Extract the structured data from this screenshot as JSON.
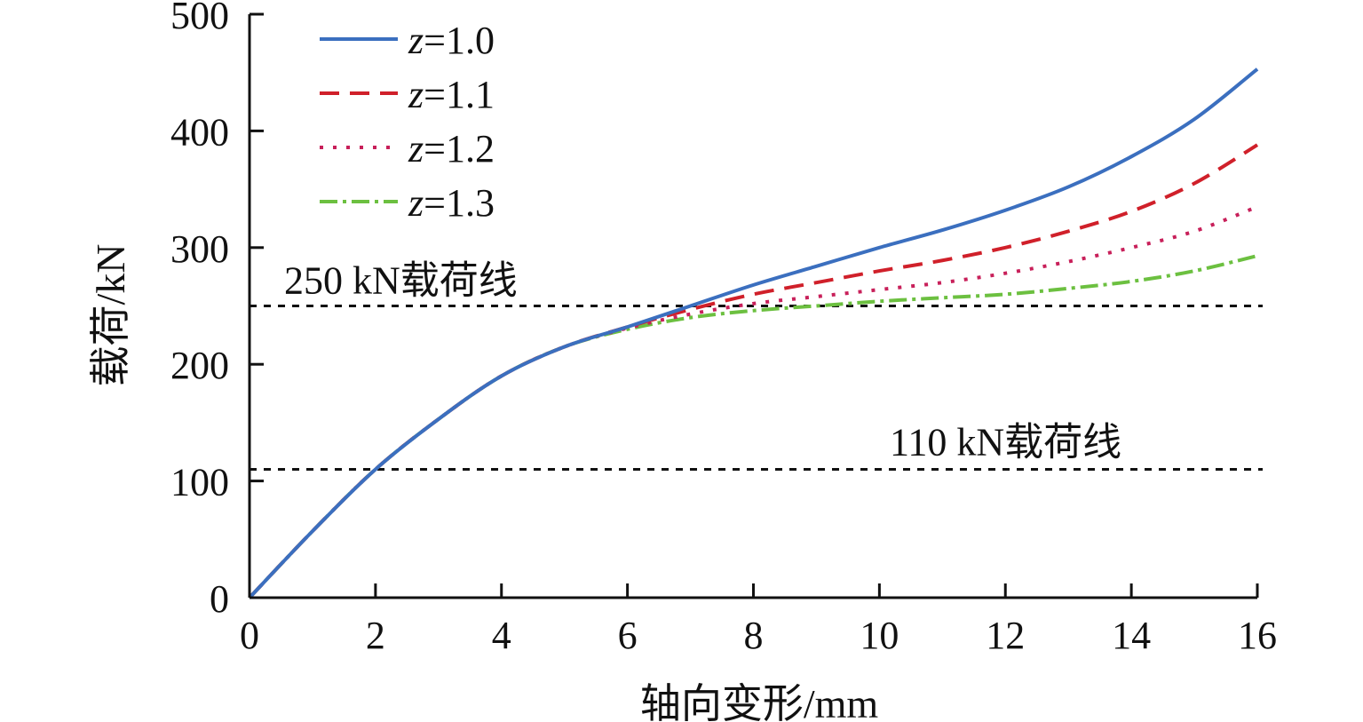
{
  "chart_data": {
    "type": "line",
    "title": "",
    "xlabel": "轴向变形/mm",
    "ylabel": "载荷/kN",
    "xlim": [
      0,
      16
    ],
    "ylim": [
      0,
      500
    ],
    "xticks": [
      "0",
      "2",
      "4",
      "6",
      "8",
      "10",
      "12",
      "14",
      "16"
    ],
    "yticks": [
      "0",
      "100",
      "200",
      "300",
      "400",
      "500"
    ],
    "grid": false,
    "legend_placement": "top-left",
    "x": [
      0,
      1,
      2,
      3,
      4,
      5,
      6,
      7,
      8,
      9,
      10,
      11,
      12,
      13,
      14,
      15,
      16
    ],
    "series": [
      {
        "name": "z=1.0",
        "prefix": "z",
        "suffix": "=1.0",
        "color": "#3b6fbf",
        "dash": "",
        "values": [
          0,
          57,
          110,
          153,
          190,
          215,
          232,
          250,
          268,
          284,
          300,
          315,
          332,
          352,
          378,
          410,
          453
        ]
      },
      {
        "name": "z=1.1",
        "prefix": "z",
        "suffix": "=1.1",
        "color": "#d0202a",
        "dash": "22 12",
        "values": [
          0,
          57,
          110,
          153,
          190,
          215,
          232,
          247,
          260,
          270,
          280,
          289,
          300,
          314,
          331,
          355,
          388
        ]
      },
      {
        "name": "z=1.2",
        "prefix": "z",
        "suffix": "=1.2",
        "color": "#c8205a",
        "dash": "4 11",
        "values": [
          0,
          57,
          110,
          153,
          190,
          215,
          231,
          243,
          252,
          258,
          264,
          270,
          278,
          288,
          300,
          314,
          335
        ]
      },
      {
        "name": "z=1.3",
        "prefix": "z",
        "suffix": "=1.3",
        "color": "#6cc040",
        "dash": "20 6 4 6",
        "values": [
          0,
          57,
          110,
          153,
          190,
          215,
          230,
          240,
          246,
          250,
          254,
          257,
          260,
          265,
          271,
          280,
          293
        ]
      }
    ],
    "reference_lines": [
      {
        "y": 250,
        "label": "250 kN载荷线"
      },
      {
        "y": 110,
        "label": "110 kN载荷线"
      }
    ]
  }
}
